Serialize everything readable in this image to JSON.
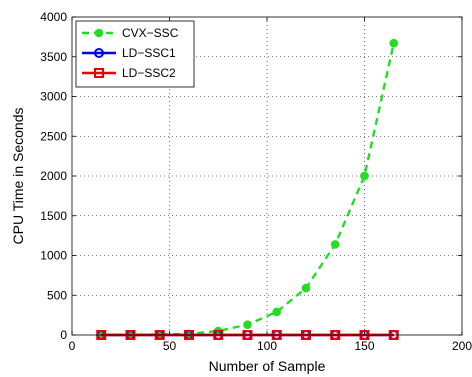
{
  "chart_data": {
    "type": "line",
    "title": "",
    "xlabel": "Number of Sample",
    "ylabel": "CPU Time in Seconds",
    "xlim": [
      0,
      200
    ],
    "ylim": [
      0,
      4000
    ],
    "xticks": [
      0,
      50,
      100,
      150,
      200
    ],
    "yticks": [
      0,
      500,
      1000,
      1500,
      2000,
      2500,
      3000,
      3500,
      4000
    ],
    "grid": true,
    "grid_style": "dotted",
    "legend_position": "top-left",
    "series": [
      {
        "name": "CVX−SSC",
        "color": "#22dd22",
        "line_style": "dashed",
        "marker": "circle-filled",
        "x": [
          15,
          30,
          45,
          60,
          75,
          90,
          105,
          120,
          135,
          150,
          165
        ],
        "y": [
          0,
          2,
          5,
          15,
          50,
          130,
          290,
          590,
          1140,
          2000,
          3670
        ]
      },
      {
        "name": "LD−SSC1",
        "color": "#0000ee",
        "line_style": "solid",
        "marker": "circle-open",
        "x": [
          15,
          30,
          45,
          60,
          75,
          90,
          105,
          120,
          135,
          150,
          165
        ],
        "y": [
          0,
          0,
          0,
          0,
          0,
          0,
          0,
          0,
          0,
          0,
          0
        ]
      },
      {
        "name": "LD−SSC2",
        "color": "#ee0000",
        "line_style": "solid",
        "marker": "square-open",
        "x": [
          15,
          30,
          45,
          60,
          75,
          90,
          105,
          120,
          135,
          150,
          165
        ],
        "y": [
          0,
          0,
          0,
          0,
          0,
          0,
          0,
          0,
          0,
          0,
          0
        ]
      }
    ]
  }
}
